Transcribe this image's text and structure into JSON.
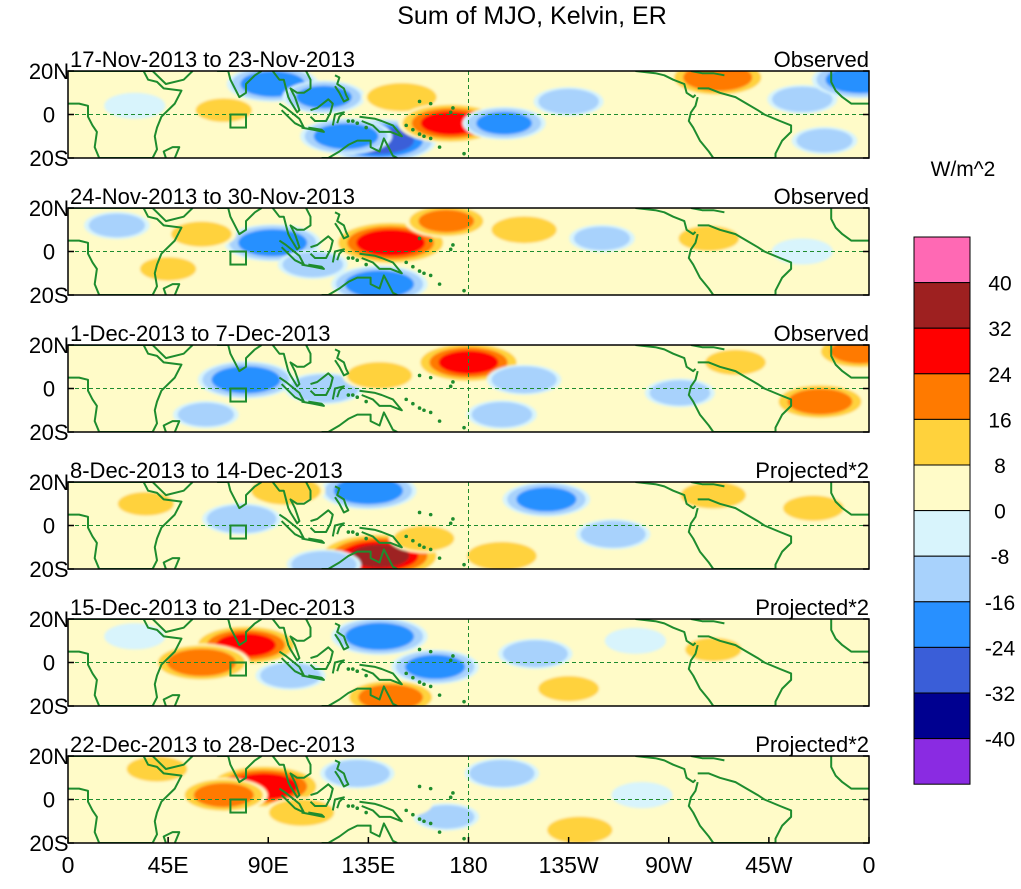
{
  "title": "Sum of MJO, Kelvin, ER",
  "colorbar": {
    "units": "W/m^2",
    "colors": [
      "#ff69b4",
      "#9e2020",
      "#ff0000",
      "#ff7a00",
      "#ffd23c",
      "#fffbc8",
      "#d8f4fc",
      "#a8d2fc",
      "#2890ff",
      "#3a5ed8",
      "#000090",
      "#8a2be2"
    ],
    "labels": [
      "40",
      "32",
      "24",
      "16",
      "8",
      "0",
      "-8",
      "-16",
      "-24",
      "-32",
      "-40"
    ]
  },
  "lat_labels": [
    "20N",
    "0",
    "20S"
  ],
  "lon_labels": [
    "0",
    "45E",
    "90E",
    "135E",
    "180",
    "135W",
    "90W",
    "45W",
    "0"
  ],
  "panels": [
    {
      "date": "17-Nov-2013 to 23-Nov-2013",
      "type": "Observed"
    },
    {
      "date": "24-Nov-2013 to 30-Nov-2013",
      "type": "Observed"
    },
    {
      "date": "1-Dec-2013 to 7-Dec-2013",
      "type": "Observed"
    },
    {
      "date": "8-Dec-2013 to 14-Dec-2013",
      "type": "Projected*2"
    },
    {
      "date": "15-Dec-2013 to 21-Dec-2013",
      "type": "Projected*2"
    },
    {
      "date": "22-Dec-2013 to 28-Dec-2013",
      "type": "Projected*2"
    }
  ],
  "anomalies": [
    [
      {
        "lon": 92,
        "lat": 14,
        "val": -20
      },
      {
        "lon": 115,
        "lat": 8,
        "val": -16
      },
      {
        "lon": 140,
        "lat": -12,
        "val": -30
      },
      {
        "lon": 125,
        "lat": -10,
        "val": -20
      },
      {
        "lon": 150,
        "lat": 8,
        "val": 14
      },
      {
        "lon": 172,
        "lat": -4,
        "val": 26
      },
      {
        "lon": 196,
        "lat": -4,
        "val": -16
      },
      {
        "lon": 225,
        "lat": 6,
        "val": -10
      },
      {
        "lon": 292,
        "lat": 17,
        "val": 22
      },
      {
        "lon": 330,
        "lat": 7,
        "val": -10
      },
      {
        "lon": 356,
        "lat": 16,
        "val": -22
      },
      {
        "lon": 70,
        "lat": 2,
        "val": 8
      },
      {
        "lon": 30,
        "lat": 4,
        "val": -6
      },
      {
        "lon": 262,
        "lat": -2,
        "val": 6
      },
      {
        "lon": 340,
        "lat": -12,
        "val": -8
      }
    ],
    [
      {
        "lon": 92,
        "lat": 4,
        "val": -22
      },
      {
        "lon": 145,
        "lat": 4,
        "val": 30
      },
      {
        "lon": 140,
        "lat": -15,
        "val": -22
      },
      {
        "lon": 170,
        "lat": 14,
        "val": 16
      },
      {
        "lon": 205,
        "lat": 10,
        "val": 12
      },
      {
        "lon": 60,
        "lat": 8,
        "val": 10
      },
      {
        "lon": 22,
        "lat": 12,
        "val": -8
      },
      {
        "lon": 240,
        "lat": 6,
        "val": -8
      },
      {
        "lon": 288,
        "lat": 6,
        "val": 10
      },
      {
        "lon": 330,
        "lat": 0,
        "val": -6
      },
      {
        "lon": 45,
        "lat": -8,
        "val": 8
      },
      {
        "lon": 110,
        "lat": -6,
        "val": -10
      }
    ],
    [
      {
        "lon": 80,
        "lat": 4,
        "val": -22
      },
      {
        "lon": 115,
        "lat": 0,
        "val": -14
      },
      {
        "lon": 180,
        "lat": 12,
        "val": 26
      },
      {
        "lon": 140,
        "lat": 6,
        "val": 12
      },
      {
        "lon": 205,
        "lat": 4,
        "val": -12
      },
      {
        "lon": 300,
        "lat": 12,
        "val": 10
      },
      {
        "lon": 338,
        "lat": -6,
        "val": 20
      },
      {
        "lon": 356,
        "lat": 17,
        "val": 18
      },
      {
        "lon": 275,
        "lat": -2,
        "val": -10
      },
      {
        "lon": 40,
        "lat": 6,
        "val": 6
      },
      {
        "lon": 195,
        "lat": -12,
        "val": -10
      },
      {
        "lon": 62,
        "lat": -12,
        "val": -8
      }
    ],
    [
      {
        "lon": 135,
        "lat": 16,
        "val": -22
      },
      {
        "lon": 98,
        "lat": 16,
        "val": 14
      },
      {
        "lon": 140,
        "lat": -14,
        "val": 34
      },
      {
        "lon": 160,
        "lat": -6,
        "val": 10
      },
      {
        "lon": 78,
        "lat": 3,
        "val": -14
      },
      {
        "lon": 215,
        "lat": 12,
        "val": -18
      },
      {
        "lon": 195,
        "lat": -14,
        "val": 14
      },
      {
        "lon": 245,
        "lat": -4,
        "val": -12
      },
      {
        "lon": 290,
        "lat": 14,
        "val": 12
      },
      {
        "lon": 335,
        "lat": 8,
        "val": 10
      },
      {
        "lon": 35,
        "lat": 10,
        "val": 8
      },
      {
        "lon": 115,
        "lat": -18,
        "val": -12
      }
    ],
    [
      {
        "lon": 80,
        "lat": 8,
        "val": 26
      },
      {
        "lon": 60,
        "lat": 0,
        "val": 22
      },
      {
        "lon": 140,
        "lat": 12,
        "val": -22
      },
      {
        "lon": 165,
        "lat": -2,
        "val": -18
      },
      {
        "lon": 145,
        "lat": -16,
        "val": 20
      },
      {
        "lon": 210,
        "lat": 4,
        "val": -12
      },
      {
        "lon": 225,
        "lat": -12,
        "val": 10
      },
      {
        "lon": 100,
        "lat": -6,
        "val": -10
      },
      {
        "lon": 290,
        "lat": 6,
        "val": 8
      },
      {
        "lon": 330,
        "lat": 2,
        "val": 6
      },
      {
        "lon": 30,
        "lat": 12,
        "val": -6
      },
      {
        "lon": 255,
        "lat": 10,
        "val": -6
      }
    ],
    [
      {
        "lon": 88,
        "lat": 6,
        "val": 30
      },
      {
        "lon": 70,
        "lat": 2,
        "val": 18
      },
      {
        "lon": 105,
        "lat": -6,
        "val": 12
      },
      {
        "lon": 130,
        "lat": 12,
        "val": -12
      },
      {
        "lon": 195,
        "lat": 12,
        "val": -12
      },
      {
        "lon": 230,
        "lat": -14,
        "val": 12
      },
      {
        "lon": 170,
        "lat": -8,
        "val": -8
      },
      {
        "lon": 40,
        "lat": 14,
        "val": 10
      },
      {
        "lon": 300,
        "lat": 6,
        "val": 6
      },
      {
        "lon": 258,
        "lat": 2,
        "val": -6
      },
      {
        "lon": 150,
        "lat": -2,
        "val": 6
      }
    ]
  ]
}
